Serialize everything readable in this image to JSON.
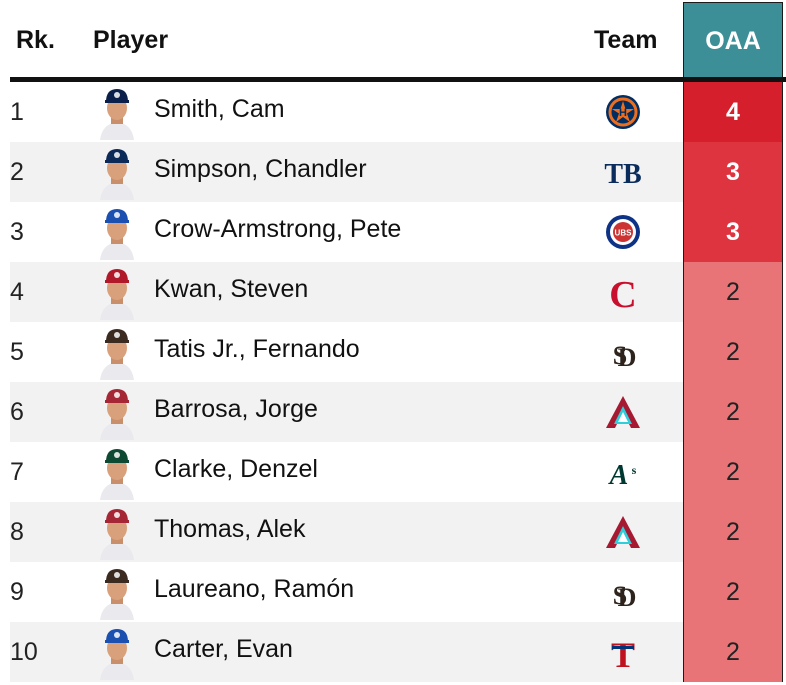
{
  "columns": {
    "rank": "Rk.",
    "player": "Player",
    "team": "Team",
    "oaa": "OAA"
  },
  "colors": {
    "header_accent": "#3c8f96",
    "oaa_high": "#d61f2c",
    "oaa_3": "#de3440",
    "oaa_2": "#e97477"
  },
  "rows": [
    {
      "rank": "1",
      "player": "Smith, Cam",
      "team_icon": "astros-logo-icon",
      "oaa": "4"
    },
    {
      "rank": "2",
      "player": "Simpson, Chandler",
      "team_icon": "rays-logo-icon",
      "oaa": "3"
    },
    {
      "rank": "3",
      "player": "Crow-Armstrong, Pete",
      "team_icon": "cubs-logo-icon",
      "oaa": "3"
    },
    {
      "rank": "4",
      "player": "Kwan, Steven",
      "team_icon": "guardians-logo-icon",
      "oaa": "2"
    },
    {
      "rank": "5",
      "player": "Tatis Jr., Fernando",
      "team_icon": "padres-logo-icon",
      "oaa": "2"
    },
    {
      "rank": "6",
      "player": "Barrosa, Jorge",
      "team_icon": "dbacks-logo-icon",
      "oaa": "2"
    },
    {
      "rank": "7",
      "player": "Clarke, Denzel",
      "team_icon": "athletics-logo-icon",
      "oaa": "2"
    },
    {
      "rank": "8",
      "player": "Thomas, Alek",
      "team_icon": "dbacks-logo-icon",
      "oaa": "2"
    },
    {
      "rank": "9",
      "player": "Laureano, Ramón",
      "team_icon": "padres-logo-icon",
      "oaa": "2"
    },
    {
      "rank": "10",
      "player": "Carter, Evan",
      "team_icon": "rangers-logo-icon",
      "oaa": "2"
    }
  ]
}
